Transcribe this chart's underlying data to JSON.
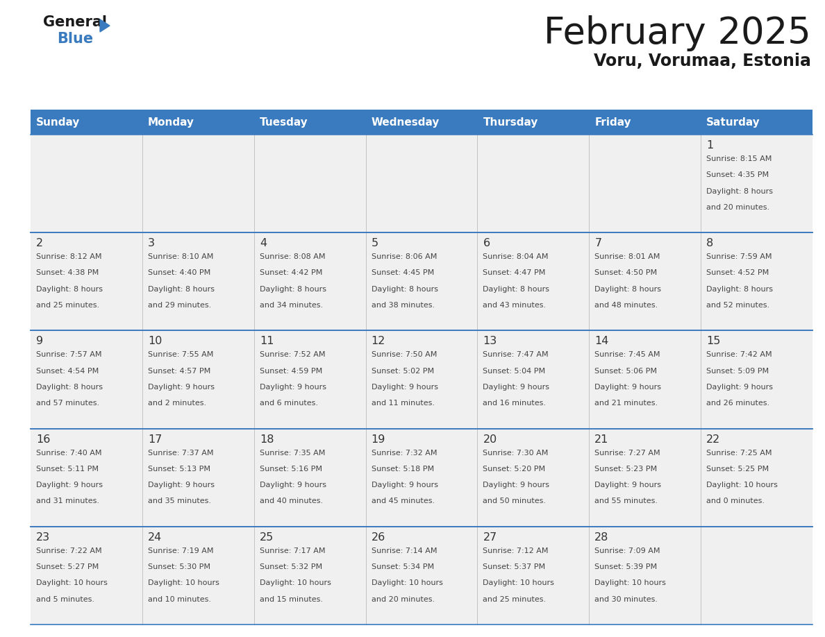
{
  "title": "February 2025",
  "subtitle": "Voru, Vorumaa, Estonia",
  "header_color": "#3a7abf",
  "header_text_color": "#ffffff",
  "cell_bg_color": "#f0f0f0",
  "border_color": "#3a7abf",
  "day_number_color": "#333333",
  "cell_text_color": "#444444",
  "day_headers": [
    "Sunday",
    "Monday",
    "Tuesday",
    "Wednesday",
    "Thursday",
    "Friday",
    "Saturday"
  ],
  "days": [
    {
      "day": 1,
      "col": 6,
      "row": 0,
      "sunrise": "8:15 AM",
      "sunset": "4:35 PM",
      "daylight_hours": 8,
      "daylight_minutes": 20
    },
    {
      "day": 2,
      "col": 0,
      "row": 1,
      "sunrise": "8:12 AM",
      "sunset": "4:38 PM",
      "daylight_hours": 8,
      "daylight_minutes": 25
    },
    {
      "day": 3,
      "col": 1,
      "row": 1,
      "sunrise": "8:10 AM",
      "sunset": "4:40 PM",
      "daylight_hours": 8,
      "daylight_minutes": 29
    },
    {
      "day": 4,
      "col": 2,
      "row": 1,
      "sunrise": "8:08 AM",
      "sunset": "4:42 PM",
      "daylight_hours": 8,
      "daylight_minutes": 34
    },
    {
      "day": 5,
      "col": 3,
      "row": 1,
      "sunrise": "8:06 AM",
      "sunset": "4:45 PM",
      "daylight_hours": 8,
      "daylight_minutes": 38
    },
    {
      "day": 6,
      "col": 4,
      "row": 1,
      "sunrise": "8:04 AM",
      "sunset": "4:47 PM",
      "daylight_hours": 8,
      "daylight_minutes": 43
    },
    {
      "day": 7,
      "col": 5,
      "row": 1,
      "sunrise": "8:01 AM",
      "sunset": "4:50 PM",
      "daylight_hours": 8,
      "daylight_minutes": 48
    },
    {
      "day": 8,
      "col": 6,
      "row": 1,
      "sunrise": "7:59 AM",
      "sunset": "4:52 PM",
      "daylight_hours": 8,
      "daylight_minutes": 52
    },
    {
      "day": 9,
      "col": 0,
      "row": 2,
      "sunrise": "7:57 AM",
      "sunset": "4:54 PM",
      "daylight_hours": 8,
      "daylight_minutes": 57
    },
    {
      "day": 10,
      "col": 1,
      "row": 2,
      "sunrise": "7:55 AM",
      "sunset": "4:57 PM",
      "daylight_hours": 9,
      "daylight_minutes": 2
    },
    {
      "day": 11,
      "col": 2,
      "row": 2,
      "sunrise": "7:52 AM",
      "sunset": "4:59 PM",
      "daylight_hours": 9,
      "daylight_minutes": 6
    },
    {
      "day": 12,
      "col": 3,
      "row": 2,
      "sunrise": "7:50 AM",
      "sunset": "5:02 PM",
      "daylight_hours": 9,
      "daylight_minutes": 11
    },
    {
      "day": 13,
      "col": 4,
      "row": 2,
      "sunrise": "7:47 AM",
      "sunset": "5:04 PM",
      "daylight_hours": 9,
      "daylight_minutes": 16
    },
    {
      "day": 14,
      "col": 5,
      "row": 2,
      "sunrise": "7:45 AM",
      "sunset": "5:06 PM",
      "daylight_hours": 9,
      "daylight_minutes": 21
    },
    {
      "day": 15,
      "col": 6,
      "row": 2,
      "sunrise": "7:42 AM",
      "sunset": "5:09 PM",
      "daylight_hours": 9,
      "daylight_minutes": 26
    },
    {
      "day": 16,
      "col": 0,
      "row": 3,
      "sunrise": "7:40 AM",
      "sunset": "5:11 PM",
      "daylight_hours": 9,
      "daylight_minutes": 31
    },
    {
      "day": 17,
      "col": 1,
      "row": 3,
      "sunrise": "7:37 AM",
      "sunset": "5:13 PM",
      "daylight_hours": 9,
      "daylight_minutes": 35
    },
    {
      "day": 18,
      "col": 2,
      "row": 3,
      "sunrise": "7:35 AM",
      "sunset": "5:16 PM",
      "daylight_hours": 9,
      "daylight_minutes": 40
    },
    {
      "day": 19,
      "col": 3,
      "row": 3,
      "sunrise": "7:32 AM",
      "sunset": "5:18 PM",
      "daylight_hours": 9,
      "daylight_minutes": 45
    },
    {
      "day": 20,
      "col": 4,
      "row": 3,
      "sunrise": "7:30 AM",
      "sunset": "5:20 PM",
      "daylight_hours": 9,
      "daylight_minutes": 50
    },
    {
      "day": 21,
      "col": 5,
      "row": 3,
      "sunrise": "7:27 AM",
      "sunset": "5:23 PM",
      "daylight_hours": 9,
      "daylight_minutes": 55
    },
    {
      "day": 22,
      "col": 6,
      "row": 3,
      "sunrise": "7:25 AM",
      "sunset": "5:25 PM",
      "daylight_hours": 10,
      "daylight_minutes": 0
    },
    {
      "day": 23,
      "col": 0,
      "row": 4,
      "sunrise": "7:22 AM",
      "sunset": "5:27 PM",
      "daylight_hours": 10,
      "daylight_minutes": 5
    },
    {
      "day": 24,
      "col": 1,
      "row": 4,
      "sunrise": "7:19 AM",
      "sunset": "5:30 PM",
      "daylight_hours": 10,
      "daylight_minutes": 10
    },
    {
      "day": 25,
      "col": 2,
      "row": 4,
      "sunrise": "7:17 AM",
      "sunset": "5:32 PM",
      "daylight_hours": 10,
      "daylight_minutes": 15
    },
    {
      "day": 26,
      "col": 3,
      "row": 4,
      "sunrise": "7:14 AM",
      "sunset": "5:34 PM",
      "daylight_hours": 10,
      "daylight_minutes": 20
    },
    {
      "day": 27,
      "col": 4,
      "row": 4,
      "sunrise": "7:12 AM",
      "sunset": "5:37 PM",
      "daylight_hours": 10,
      "daylight_minutes": 25
    },
    {
      "day": 28,
      "col": 5,
      "row": 4,
      "sunrise": "7:09 AM",
      "sunset": "5:39 PM",
      "daylight_hours": 10,
      "daylight_minutes": 30
    }
  ]
}
